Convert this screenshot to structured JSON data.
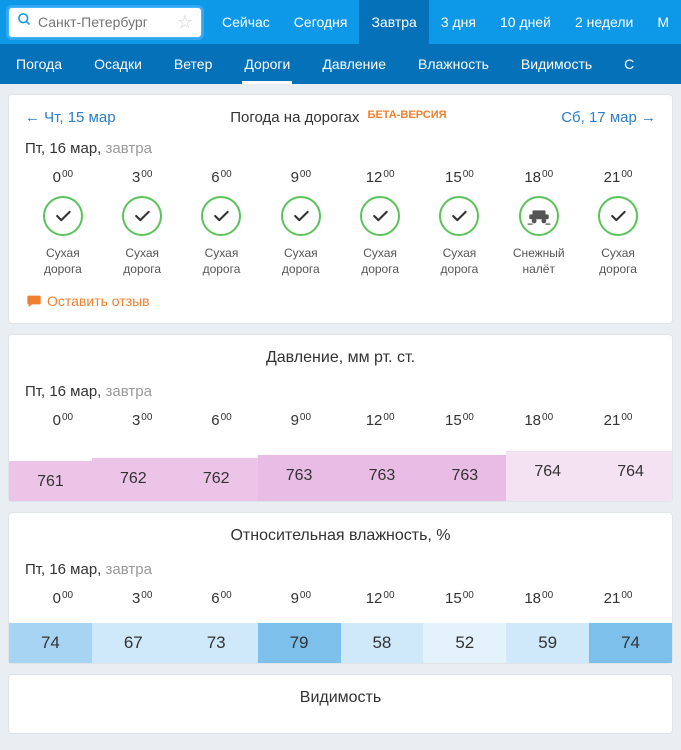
{
  "search": {
    "placeholder": "Санкт-Петербург"
  },
  "topTabs": [
    "Сейчас",
    "Сегодня",
    "Завтра",
    "3 дня",
    "10 дней",
    "2 недели",
    "М"
  ],
  "topActive": 2,
  "subTabs": [
    "Погода",
    "Осадки",
    "Ветер",
    "Дороги",
    "Давление",
    "Влажность",
    "Видимость",
    "С"
  ],
  "subActive": 3,
  "roads": {
    "navPrev": "← Чт, 15 мар",
    "navNext": "Сб, 17 мар →",
    "title": "Погода на дорогах",
    "beta": "БЕТА-ВЕРСИЯ",
    "dateMain": "Пт, 16 мар,",
    "dateSub": " завтра",
    "hours": [
      "0",
      "3",
      "6",
      "9",
      "12",
      "15",
      "18",
      "21"
    ],
    "conditions": [
      {
        "type": "dry",
        "l1": "Сухая",
        "l2": "дорога"
      },
      {
        "type": "dry",
        "l1": "Сухая",
        "l2": "дорога"
      },
      {
        "type": "dry",
        "l1": "Сухая",
        "l2": "дорога"
      },
      {
        "type": "dry",
        "l1": "Сухая",
        "l2": "дорога"
      },
      {
        "type": "dry",
        "l1": "Сухая",
        "l2": "дорога"
      },
      {
        "type": "dry",
        "l1": "Сухая",
        "l2": "дорога"
      },
      {
        "type": "snow",
        "l1": "Снежный",
        "l2": "налёт"
      },
      {
        "type": "dry",
        "l1": "Сухая",
        "l2": "дорога"
      }
    ],
    "feedback": "Оставить отзыв"
  },
  "pressure": {
    "title": "Давление, мм рт. ст.",
    "dateMain": "Пт, 16 мар,",
    "dateSub": " завтра",
    "hours": [
      "0",
      "3",
      "6",
      "9",
      "12",
      "15",
      "18",
      "21"
    ],
    "values": [
      761,
      762,
      762,
      763,
      763,
      763,
      764,
      764
    ],
    "colors": [
      "#ecc4e8",
      "#ecc4e8",
      "#ecc4e8",
      "#e8bce4",
      "#e8bce4",
      "#e8bce4",
      "#f4e2f2",
      "#f4e2f2"
    ],
    "offsets": [
      6,
      3,
      3,
      0,
      0,
      0,
      -4,
      -4
    ]
  },
  "humidity": {
    "title": "Относительная влажность, %",
    "dateMain": "Пт, 16 мар,",
    "dateSub": " завтра",
    "hours": [
      "0",
      "3",
      "6",
      "9",
      "12",
      "15",
      "18",
      "21"
    ],
    "values": [
      74,
      67,
      73,
      79,
      58,
      52,
      59,
      74
    ],
    "colors": [
      "#a8d4f4",
      "#cfe8fa",
      "#cfe8fa",
      "#7dc0ec",
      "#cfe8fa",
      "#e4f2fc",
      "#cfe8fa",
      "#7dc0ec"
    ]
  },
  "visibility": {
    "title": "Видимость"
  }
}
